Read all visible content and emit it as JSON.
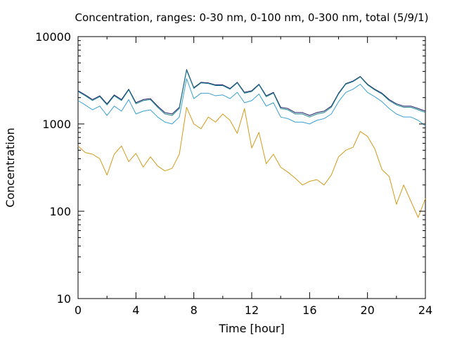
{
  "chart_data": {
    "type": "line",
    "title": "Concentration, ranges: 0-30 nm, 0-100 nm, 0-300 nm, total (5/9/1)",
    "xlabel": "Time [hour]",
    "ylabel": "Concentration",
    "xlim": [
      0,
      24
    ],
    "ylim": [
      10,
      10000
    ],
    "yscale": "log",
    "grid": false,
    "legend": "none",
    "x_ticks": [
      "0",
      "4",
      "8",
      "12",
      "16",
      "20",
      "24"
    ],
    "y_ticks": [
      "10",
      "100",
      "1000",
      "10000"
    ],
    "x": [
      0,
      0.5,
      1,
      1.5,
      2,
      2.5,
      3,
      3.5,
      4,
      4.5,
      5,
      5.5,
      6,
      6.5,
      7,
      7.5,
      8,
      8.5,
      9,
      9.5,
      10,
      10.5,
      11,
      11.5,
      12,
      12.5,
      13,
      13.5,
      14,
      14.5,
      15,
      15.5,
      16,
      16.5,
      17,
      17.5,
      18,
      18.5,
      19,
      19.5,
      20,
      20.5,
      21,
      21.5,
      22,
      22.5,
      23,
      23.5,
      24
    ],
    "series": [
      {
        "color": "#1a1a6e",
        "values": [
          2400,
          2150,
          1900,
          2100,
          1700,
          2150,
          1900,
          2500,
          1750,
          1900,
          1950,
          1600,
          1350,
          1300,
          1550,
          4200,
          2600,
          3000,
          2950,
          2800,
          2800,
          2550,
          3000,
          2300,
          2400,
          2850,
          2100,
          2300,
          1550,
          1500,
          1350,
          1350,
          1250,
          1350,
          1400,
          1600,
          2250,
          2900,
          3100,
          3500,
          2850,
          2500,
          2250,
          1900,
          1700,
          1600,
          1600,
          1500,
          1400
        ]
      },
      {
        "color": "#1e8a8a",
        "values": [
          2350,
          2100,
          1850,
          2050,
          1650,
          2100,
          1850,
          2450,
          1700,
          1850,
          1900,
          1550,
          1300,
          1250,
          1500,
          4100,
          2550,
          2950,
          2900,
          2750,
          2750,
          2500,
          2950,
          2250,
          2350,
          2800,
          2050,
          2250,
          1500,
          1450,
          1300,
          1300,
          1200,
          1300,
          1350,
          1550,
          2200,
          2850,
          3050,
          3450,
          2800,
          2450,
          2200,
          1850,
          1650,
          1550,
          1550,
          1450,
          1350
        ]
      },
      {
        "color": "#3aa0d2",
        "values": [
          1850,
          1650,
          1450,
          1600,
          1250,
          1600,
          1400,
          1900,
          1300,
          1400,
          1450,
          1200,
          1050,
          1000,
          1200,
          3300,
          1950,
          2250,
          2250,
          2100,
          2150,
          1950,
          2300,
          1750,
          1850,
          2200,
          1600,
          1750,
          1200,
          1150,
          1050,
          1050,
          1000,
          1100,
          1150,
          1300,
          1800,
          2300,
          2500,
          2850,
          2300,
          2050,
          1800,
          1500,
          1300,
          1200,
          1200,
          1100,
          950
        ]
      },
      {
        "color": "#d29a1a",
        "values": [
          560,
          470,
          450,
          400,
          260,
          450,
          560,
          370,
          460,
          320,
          420,
          330,
          290,
          310,
          450,
          1550,
          1000,
          880,
          1200,
          1050,
          1300,
          1100,
          780,
          1500,
          530,
          800,
          350,
          450,
          320,
          280,
          240,
          200,
          220,
          230,
          200,
          260,
          420,
          500,
          540,
          820,
          720,
          520,
          300,
          250,
          120,
          200,
          130,
          85,
          140
        ]
      }
    ]
  }
}
